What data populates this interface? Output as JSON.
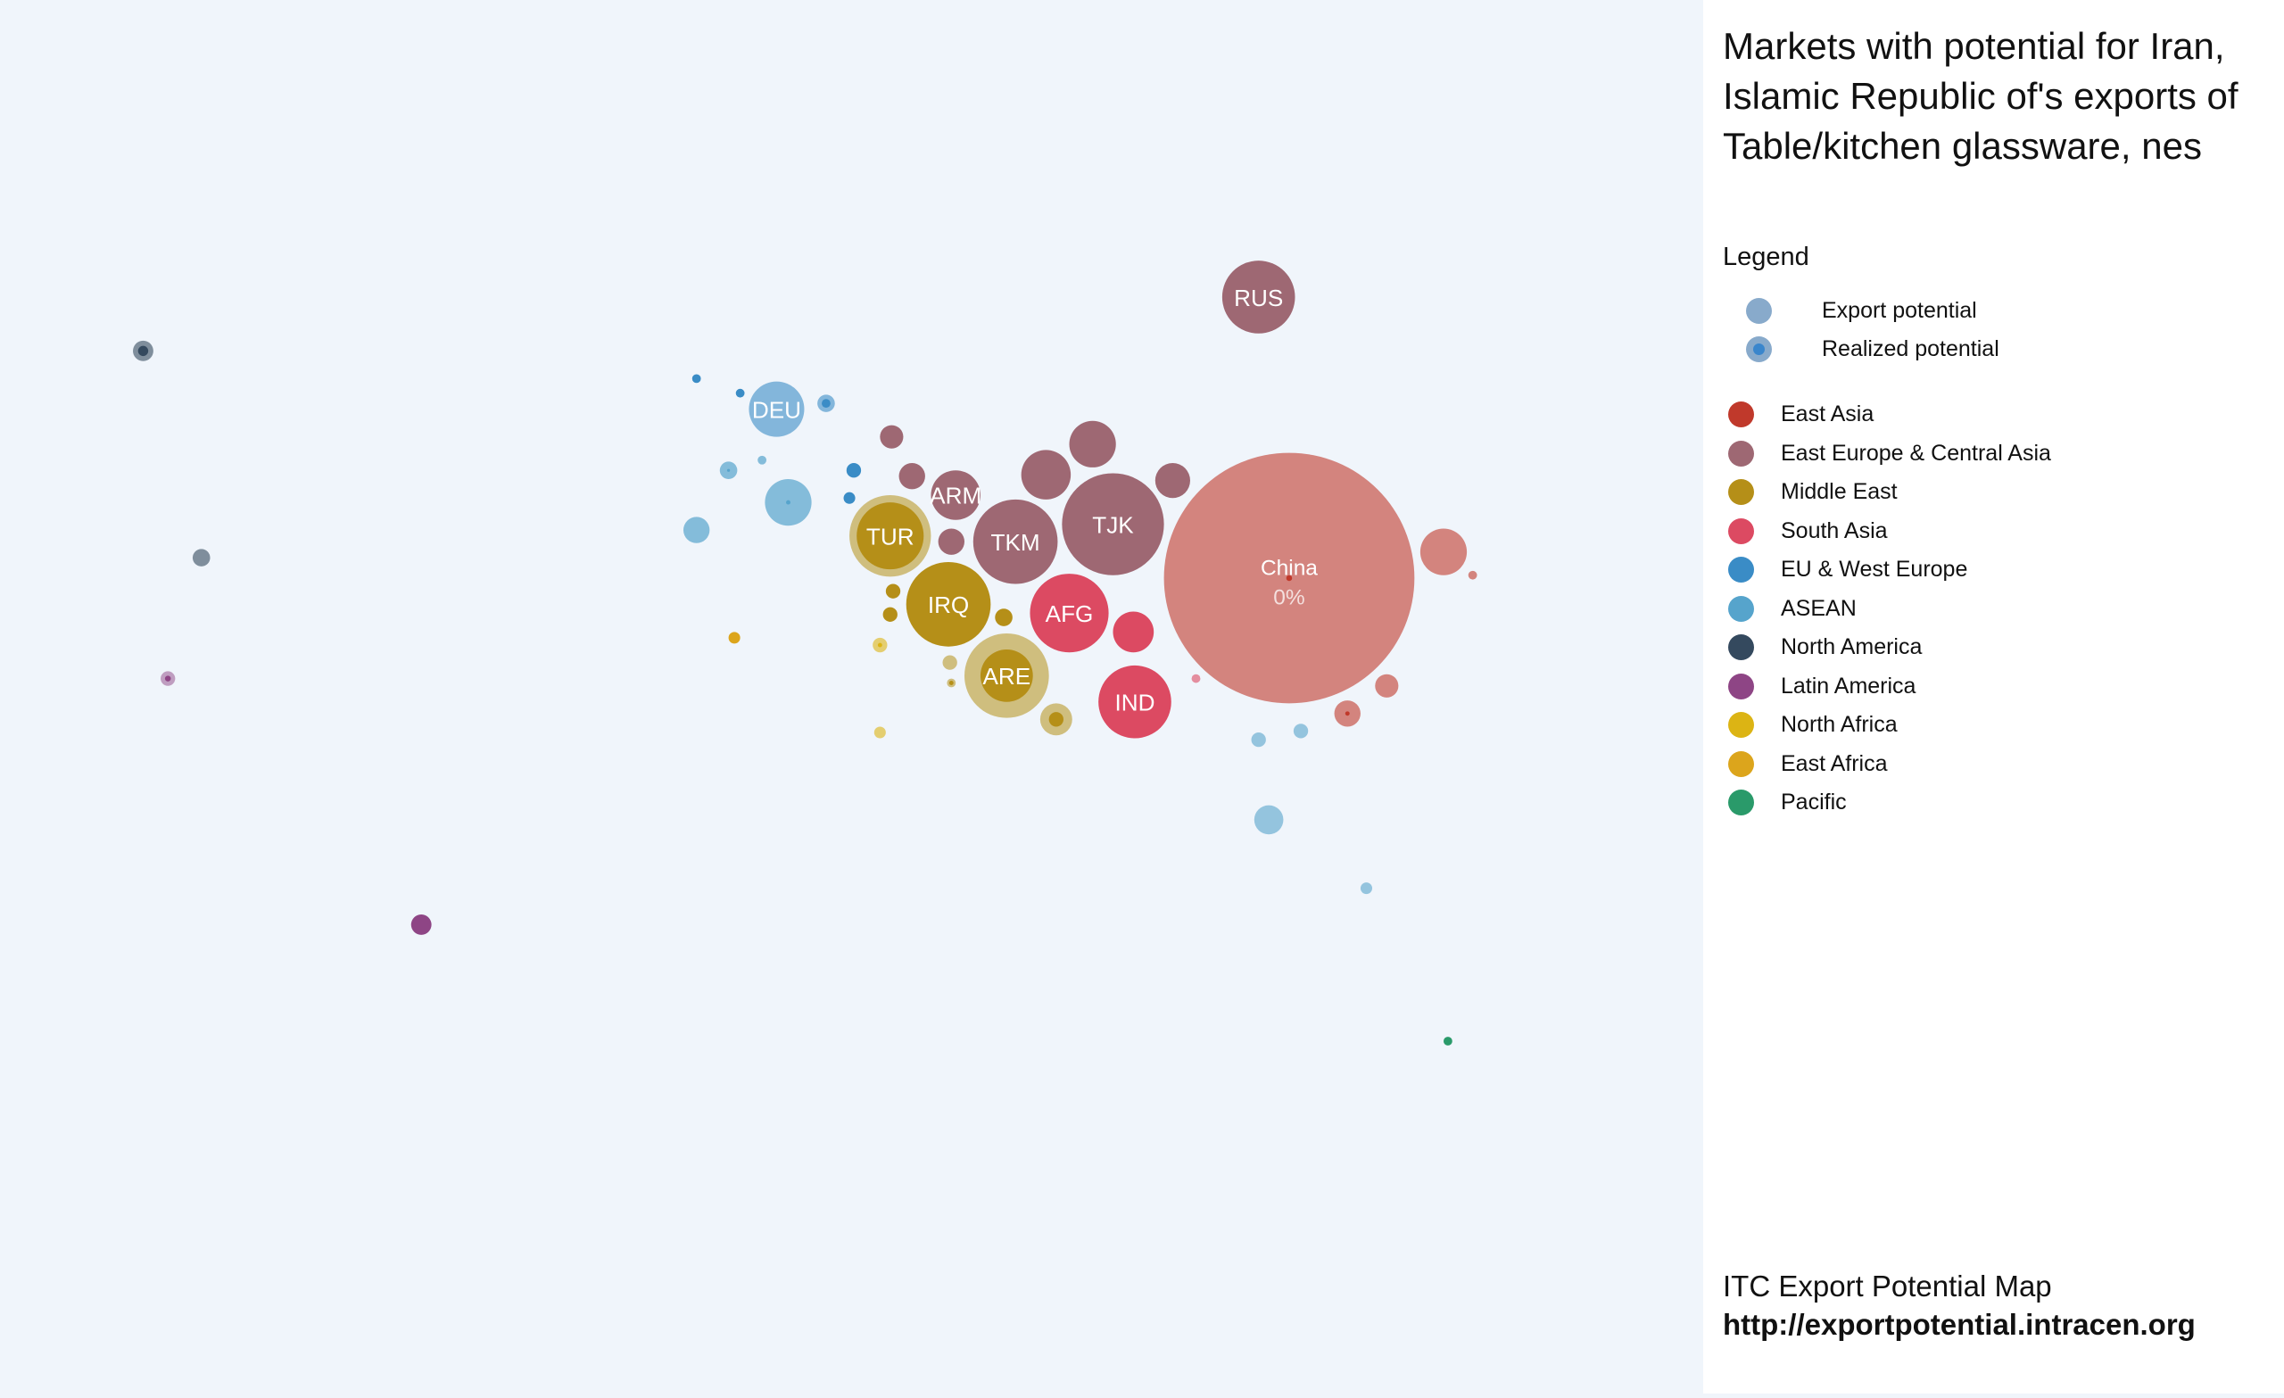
{
  "title": "Markets with potential for Iran, Islamic Republic of's exports of Table/kitchen glassware, nes",
  "legend": {
    "heading": "Legend",
    "export_potential": "Export potential",
    "realized_potential": "Realized potential",
    "regions": [
      {
        "name": "East Asia",
        "color": "#c0392b"
      },
      {
        "name": "East Europe & Central Asia",
        "color": "#9e6873"
      },
      {
        "name": "Middle East",
        "color": "#b58f18"
      },
      {
        "name": "South Asia",
        "color": "#dc4a62"
      },
      {
        "name": "EU & West Europe",
        "color": "#3a8cc6"
      },
      {
        "name": "ASEAN",
        "color": "#56a4cc"
      },
      {
        "name": "North America",
        "color": "#34495e"
      },
      {
        "name": "Latin America",
        "color": "#8e4585"
      },
      {
        "name": "North Africa",
        "color": "#dcb414"
      },
      {
        "name": "East Africa",
        "color": "#dca51c"
      },
      {
        "name": "Pacific",
        "color": "#2a9a6a"
      }
    ]
  },
  "chart_data": {
    "type": "scatter",
    "title": "Markets with potential for Iran, Islamic Republic of's exports of Table/kitchen glassware, nes",
    "labeled_markets": [
      {
        "label": "China",
        "sublabel": "0%",
        "region": "East Asia"
      },
      {
        "label": "RUS",
        "region": "East Europe & Central Asia"
      },
      {
        "label": "TJK",
        "region": "East Europe & Central Asia"
      },
      {
        "label": "TKM",
        "region": "East Europe & Central Asia"
      },
      {
        "label": "ARM",
        "region": "East Europe & Central Asia"
      },
      {
        "label": "TUR",
        "region": "Middle East"
      },
      {
        "label": "IRQ",
        "region": "Middle East"
      },
      {
        "label": "ARE",
        "region": "Middle East"
      },
      {
        "label": "AFG",
        "region": "South Asia"
      },
      {
        "label": "IND",
        "region": "South Asia"
      },
      {
        "label": "DEU",
        "region": "EU & West Europe"
      }
    ]
  },
  "footer": {
    "source": "ITC Export Potential Map",
    "url": "http://exportpotential.intracen.org"
  }
}
